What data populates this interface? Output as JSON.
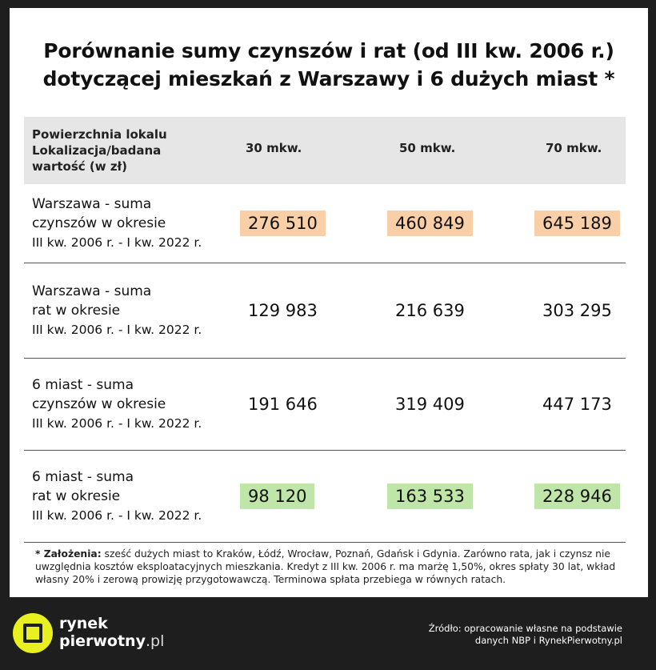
{
  "title": {
    "line1": "Porównanie sumy czynszów i rat (od III kw. 2006 r.)",
    "line2": "dotyczącej mieszkań z Warszawy i 6 dużych miast *"
  },
  "table": {
    "corner": [
      "Powierzchnia lokalu",
      "Lokalizacja/badana",
      "wartość (w zł)"
    ],
    "columns": [
      "30 mkw.",
      "50 mkw.",
      "70 mkw."
    ],
    "rows": [
      {
        "label": [
          "Warszawa - suma",
          "czynszów w okresie",
          "III kw. 2006 r. - I kw. 2022 r."
        ],
        "values": [
          "276 510",
          "460 849",
          "645 189"
        ],
        "highlight": "#f8cfa6"
      },
      {
        "label": [
          "Warszawa - suma",
          "rat w okresie",
          "III kw. 2006 r. - I kw. 2022 r."
        ],
        "values": [
          "129 983",
          "216 639",
          "303 295"
        ],
        "highlight": ""
      },
      {
        "label": [
          "6 miast - suma",
          "czynszów w okresie",
          "III kw. 2006 r. - I kw. 2022 r."
        ],
        "values": [
          "191 646",
          "319 409",
          "447 173"
        ],
        "highlight": ""
      },
      {
        "label": [
          "6 miast - suma",
          "rat w okresie",
          "III kw. 2006 r. - I kw. 2022 r."
        ],
        "values": [
          "98 120",
          "163 533",
          "228 946"
        ],
        "highlight": "#bfe5a8"
      }
    ]
  },
  "note": {
    "prefix": "* Założenia:",
    "text": " sześć dużych miast to Kraków, Łódź, Wrocław, Poznań, Gdańsk i Gdynia. Zarówno rata, jak i czynsz nie uwzględnia kosztów eksploatacyjnych mieszkania. Kredyt z III kw. 2006 r. ma marżę 1,50%, okres spłaty 30 lat, wkład własny 20% i zerową prowizję przygotowawczą. Terminowa spłata przebiega w równych ratach."
  },
  "logo": {
    "line1": "rynek",
    "line2": "pierwotny",
    "suffix": ".pl",
    "icon": "rynek-logo-icon",
    "accent": "#e8f020"
  },
  "source": {
    "line1": "Źródło: opracowanie własne na podstawie",
    "line2": "danych NBP i RynekPierwotny.pl"
  }
}
